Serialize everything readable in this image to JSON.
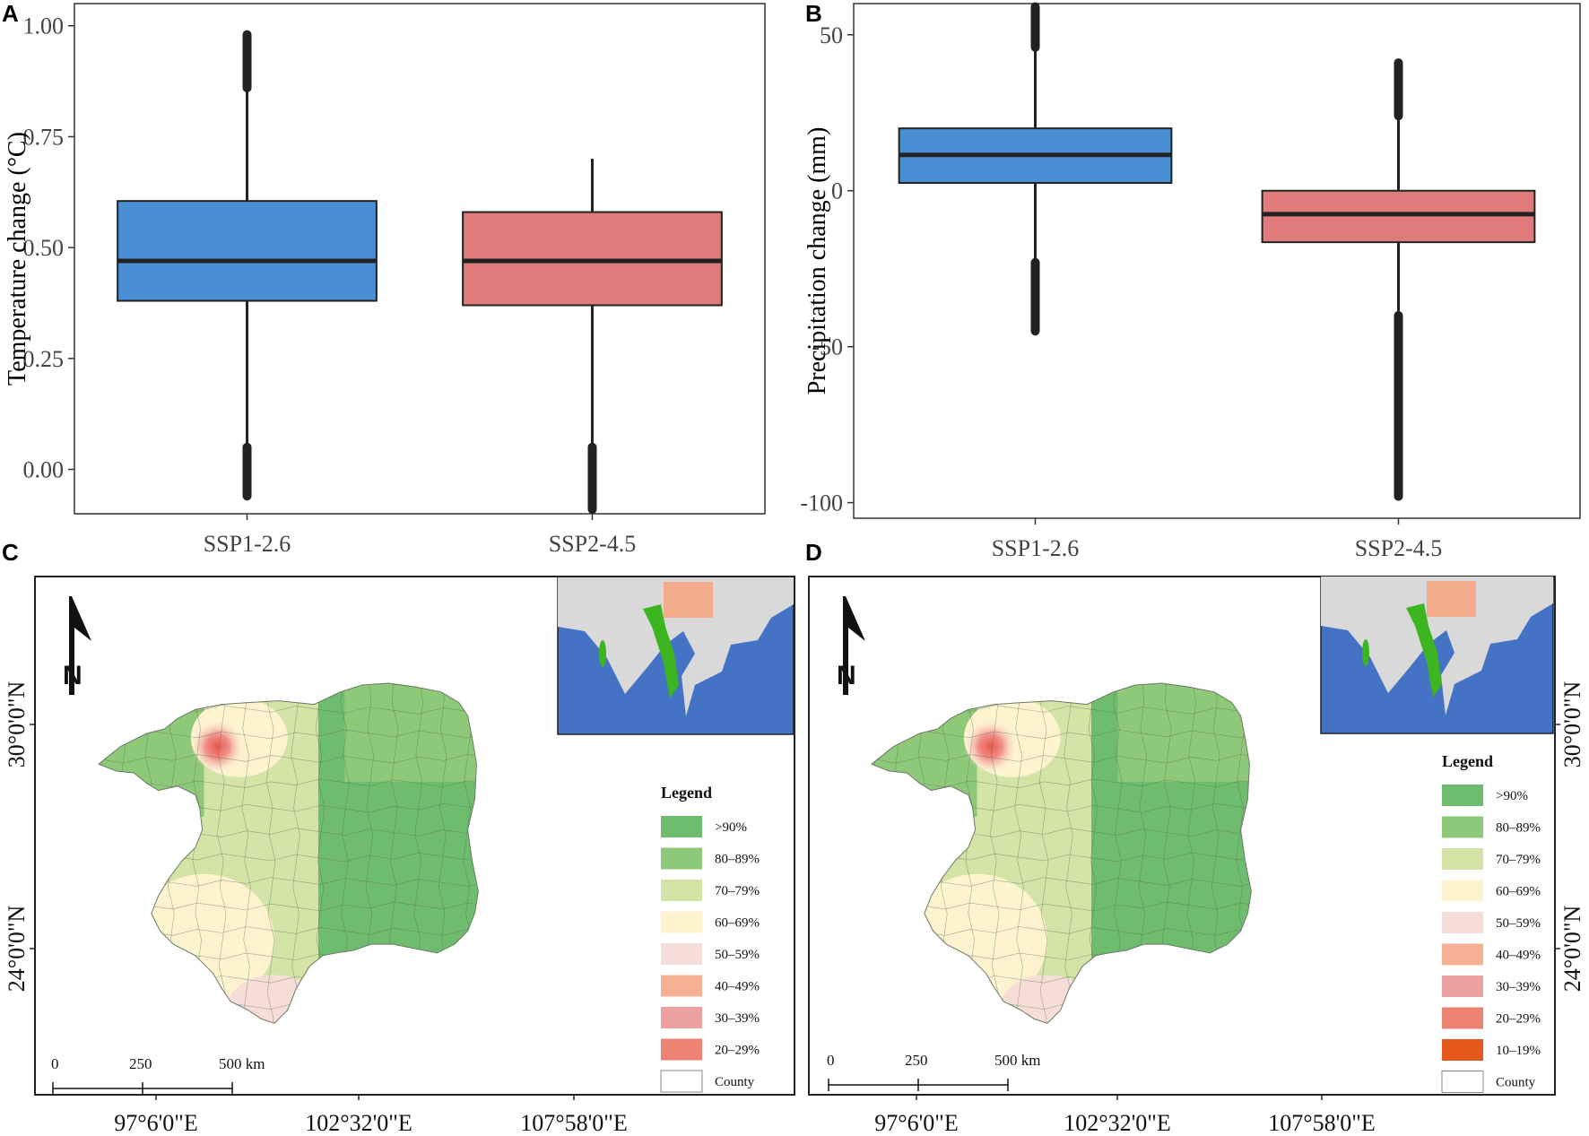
{
  "colors": {
    "ssp126": "#4a8fd4",
    "ssp245": "#e07b7b",
    "ocean": "#4472c4",
    "land": "#d9d9d9",
    "range_green": "#3cb521",
    "range_red": "#f4a582"
  },
  "chart_data": [
    {
      "panel": "A",
      "type": "box",
      "ylabel": "Temperature change (°C)",
      "xlabel": "",
      "categories": [
        "SSP1-2.6",
        "SSP2-4.5"
      ],
      "ylim": [
        -0.1,
        1.05
      ],
      "yticks": [
        0.0,
        0.25,
        0.5,
        0.75,
        1.0
      ],
      "ytick_labels": [
        "0.00",
        "0.25",
        "0.50",
        "0.75",
        "1.00"
      ],
      "boxes": [
        {
          "name": "SSP1-2.6",
          "q1": 0.38,
          "median": 0.47,
          "q3": 0.605,
          "whisker_low": -0.06,
          "whisker_high": 0.98,
          "outliers_low": [
            -0.06,
            0.05
          ],
          "outliers_high": [
            0.86,
            0.98
          ]
        },
        {
          "name": "SSP2-4.5",
          "q1": 0.37,
          "median": 0.47,
          "q3": 0.58,
          "whisker_low": -0.09,
          "whisker_high": 0.7,
          "outliers_low": [
            -0.09,
            0.05
          ],
          "outliers_high": []
        }
      ]
    },
    {
      "panel": "B",
      "type": "box",
      "ylabel": "Precipitation change (mm)",
      "xlabel": "",
      "categories": [
        "SSP1-2.6",
        "SSP2-4.5"
      ],
      "ylim": [
        -105,
        60
      ],
      "yticks": [
        -100,
        -50,
        0,
        50
      ],
      "ytick_labels": [
        "-100",
        "-50",
        "0",
        "50"
      ],
      "boxes": [
        {
          "name": "SSP1-2.6",
          "q1": 2.5,
          "median": 11.5,
          "q3": 20,
          "whisker_low": -45,
          "whisker_high": 59,
          "outliers_low": [
            -45,
            -23
          ],
          "outliers_high": [
            46,
            59
          ]
        },
        {
          "name": "SSP2-4.5",
          "q1": -16.5,
          "median": -7.5,
          "q3": 0,
          "whisker_low": -98,
          "whisker_high": 41,
          "outliers_low": [
            -98,
            -40
          ],
          "outliers_high": [
            24,
            41
          ]
        }
      ]
    }
  ],
  "maps": [
    {
      "panel": "C",
      "legend_title": "Legend",
      "legend": [
        {
          "label": ">90%",
          "color": "#6ebc6e"
        },
        {
          "label": "80–89%",
          "color": "#8ec97a"
        },
        {
          "label": "70–79%",
          "color": "#d3e4a6"
        },
        {
          "label": "60–69%",
          "color": "#fdf3cf"
        },
        {
          "label": "50–59%",
          "color": "#f6ddd8"
        },
        {
          "label": "40–49%",
          "color": "#f6b194"
        },
        {
          "label": "30–39%",
          "color": "#eda0a0"
        },
        {
          "label": "20–29%",
          "color": "#ee8270"
        },
        {
          "label": "County",
          "color": "#ffffff"
        }
      ],
      "x_ticks": [
        "97°6'0\"E",
        "102°32'0\"E",
        "107°58'0\"E"
      ],
      "y_ticks": [
        "30°0'0\"N",
        "24°0'0\"N"
      ],
      "scale": [
        "0",
        "250",
        "500 km"
      ]
    },
    {
      "panel": "D",
      "legend_title": "Legend",
      "legend": [
        {
          "label": ">90%",
          "color": "#6ebc6e"
        },
        {
          "label": "80–89%",
          "color": "#8ec97a"
        },
        {
          "label": "70–79%",
          "color": "#d3e4a6"
        },
        {
          "label": "60–69%",
          "color": "#fdf3cf"
        },
        {
          "label": "50–59%",
          "color": "#f6ddd8"
        },
        {
          "label": "40–49%",
          "color": "#f6b194"
        },
        {
          "label": "30–39%",
          "color": "#eda0a0"
        },
        {
          "label": "20–29%",
          "color": "#ee8270"
        },
        {
          "label": "10–19%",
          "color": "#e4581a"
        },
        {
          "label": "County",
          "color": "#ffffff"
        }
      ],
      "x_ticks": [
        "97°6'0\"E",
        "102°32'0\"E",
        "107°58'0\"E"
      ],
      "y_ticks": [
        "30°0'0\"N",
        "24°0'0\"N"
      ],
      "scale": [
        "0",
        "250",
        "500 km"
      ]
    }
  ]
}
